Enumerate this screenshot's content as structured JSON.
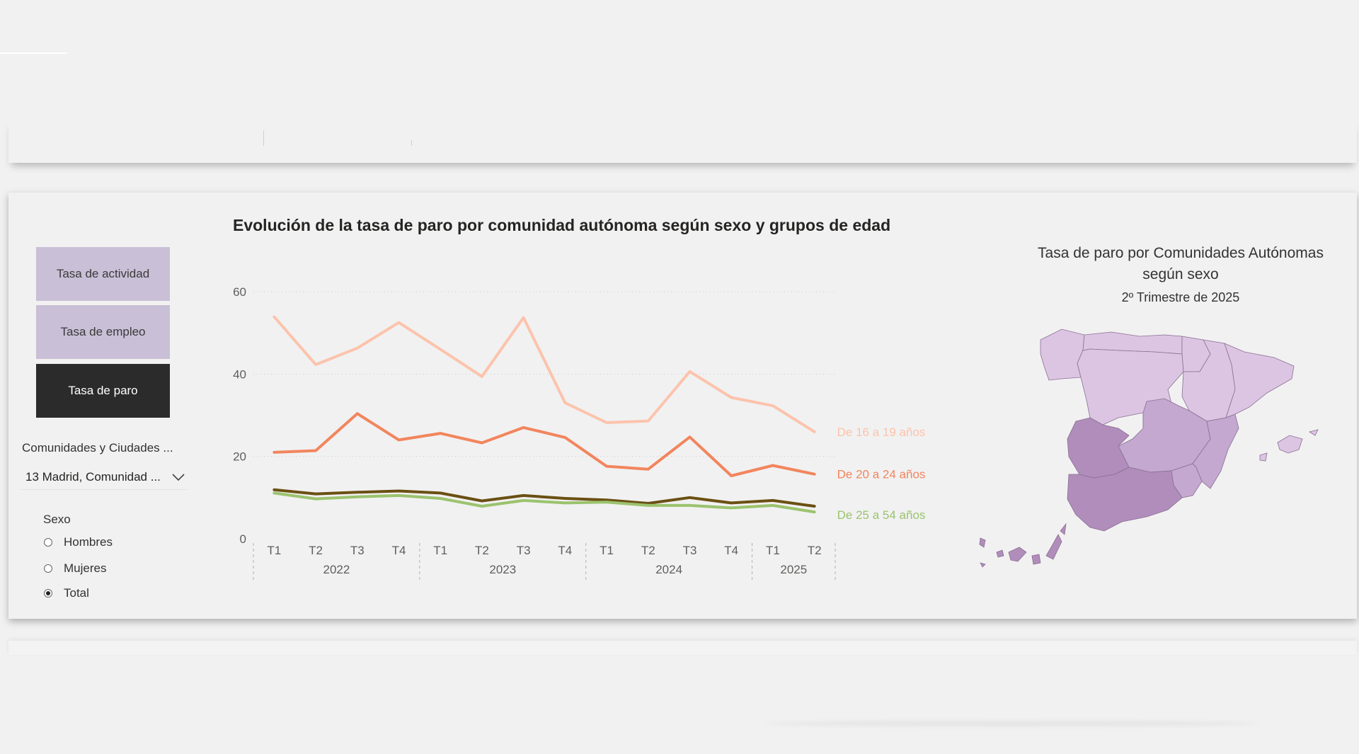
{
  "measures": {
    "activity_label": "Tasa de actividad",
    "employment_label": "Tasa de empleo",
    "unemployment_label": "Tasa de paro",
    "selected": "Tasa de paro"
  },
  "filters": {
    "region_label": "Comunidades y Ciudades ...",
    "region_value": "13 Madrid, Comunidad ...",
    "sex_label": "Sexo",
    "sex_options": [
      "Hombres",
      "Mujeres",
      "Total"
    ],
    "sex_selected": "Total"
  },
  "chart_data": {
    "type": "line",
    "title": "Evolución de la tasa de paro por comunidad autónoma según sexo y grupos de edad",
    "x_quarters": [
      "T1",
      "T2",
      "T3",
      "T4",
      "T1",
      "T2",
      "T3",
      "T4",
      "T1",
      "T2",
      "T3",
      "T4",
      "T1",
      "T2"
    ],
    "x_years": [
      {
        "label": "2022",
        "quarters": 4
      },
      {
        "label": "2023",
        "quarters": 4
      },
      {
        "label": "2024",
        "quarters": 4
      },
      {
        "label": "2025",
        "quarters": 2
      }
    ],
    "ylim": [
      0,
      60
    ],
    "yticks": [
      0,
      20,
      40,
      60
    ],
    "grid": true,
    "series": [
      {
        "name": "De 16 a 19 años",
        "color": "#fcc3ac",
        "values": [
          53.9,
          42.3,
          46.3,
          52.5,
          46.0,
          39.4,
          53.7,
          33.0,
          28.2,
          28.6,
          40.6,
          34.3,
          32.3,
          26.0
        ]
      },
      {
        "name": "De 20 a 24 años",
        "color": "#f2855d",
        "values": [
          21.0,
          21.4,
          30.4,
          24.0,
          25.6,
          23.3,
          27.0,
          24.6,
          17.6,
          16.9,
          24.7,
          15.3,
          17.8,
          15.7
        ]
      },
      {
        "name": "",
        "color": "#6b5013",
        "values": [
          11.9,
          10.9,
          11.3,
          11.6,
          11.1,
          9.2,
          10.5,
          9.8,
          9.4,
          8.6,
          10.0,
          8.7,
          9.3,
          7.9
        ]
      },
      {
        "name": "De 25 a 54 años",
        "color": "#9bc36e",
        "values": [
          11.1,
          9.7,
          10.2,
          10.5,
          9.8,
          7.9,
          9.3,
          8.7,
          8.9,
          8.1,
          8.1,
          7.5,
          8.1,
          6.5
        ]
      }
    ]
  },
  "map": {
    "title": "Tasa de paro por Comunidades Autónomas según sexo",
    "subtitle": "2º Trimestre de 2025",
    "colors": {
      "light": "#dcc5e2",
      "mid": "#c4a8cf",
      "dark": "#b18dbb"
    }
  }
}
